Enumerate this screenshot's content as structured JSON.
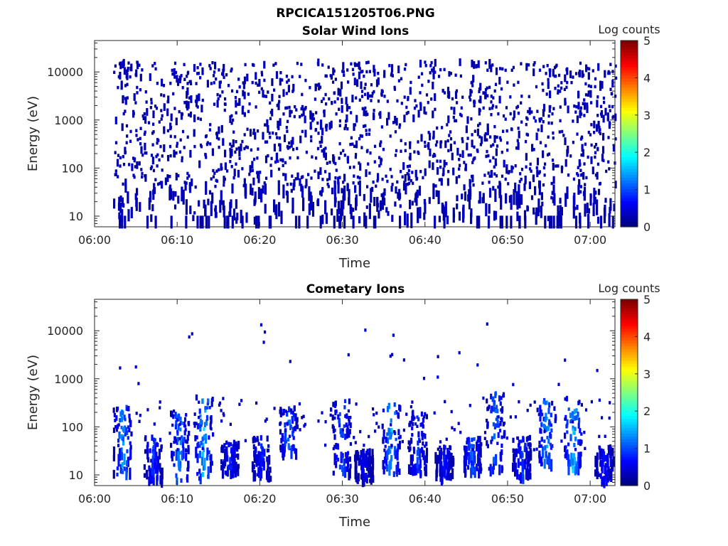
{
  "figure_title": "RPCICA151205T06.PNG",
  "colors": {
    "scatter_palette": "jet",
    "axis": "#262626",
    "background": "#ffffff"
  },
  "chart_data": [
    {
      "type": "heatmap",
      "title": "Solar Wind Ions",
      "xlabel": "Time",
      "ylabel": "Energy (eV)",
      "x_ticks": [
        "06:00",
        "06:10",
        "06:20",
        "06:30",
        "06:40",
        "06:50",
        "07:00"
      ],
      "x_tick_minutes": [
        0,
        10,
        20,
        30,
        40,
        50,
        60
      ],
      "xlim_minutes": [
        0,
        63
      ],
      "y_scale": "log",
      "y_ticks": [
        "10",
        "100",
        "1000",
        "10000"
      ],
      "y_tick_values": [
        10,
        100,
        1000,
        10000
      ],
      "ylim": [
        6,
        45000
      ],
      "colorbar": {
        "label": "Log counts",
        "range": [
          0,
          5
        ],
        "ticks": [
          "0",
          "1",
          "2",
          "3",
          "4",
          "5"
        ]
      },
      "description_pattern": "sparse",
      "clusters": []
    },
    {
      "type": "heatmap",
      "title": "Cometary Ions",
      "xlabel": "Time",
      "ylabel": "Energy (eV)",
      "x_ticks": [
        "06:00",
        "06:10",
        "06:20",
        "06:30",
        "06:40",
        "06:50",
        "07:00"
      ],
      "x_tick_minutes": [
        0,
        10,
        20,
        30,
        40,
        50,
        60
      ],
      "xlim_minutes": [
        0,
        63
      ],
      "y_scale": "log",
      "y_ticks": [
        "10",
        "100",
        "1000",
        "10000"
      ],
      "y_tick_values": [
        10,
        100,
        1000,
        10000
      ],
      "ylim": [
        6,
        45000
      ],
      "colorbar": {
        "label": "Log counts",
        "range": [
          0,
          5
        ],
        "ticks": [
          "0",
          "1",
          "2",
          "3",
          "4",
          "5"
        ]
      },
      "description_pattern": "clustered",
      "clusters": [
        {
          "t": 3.3,
          "emin": 10,
          "emax": 250,
          "peak": 1.6
        },
        {
          "t": 7.0,
          "emin": 7,
          "emax": 60,
          "peak": 1.0
        },
        {
          "t": 10.2,
          "emin": 7,
          "emax": 200,
          "peak": 1.5
        },
        {
          "t": 13.1,
          "emin": 7,
          "emax": 450,
          "peak": 1.8
        },
        {
          "t": 16.3,
          "emin": 10,
          "emax": 50,
          "peak": 0.9
        },
        {
          "t": 20.1,
          "emin": 8,
          "emax": 60,
          "peak": 0.9
        },
        {
          "t": 23.4,
          "emin": 25,
          "emax": 250,
          "peak": 1.4
        },
        {
          "t": 29.8,
          "emin": 10,
          "emax": 350,
          "peak": 1.2
        },
        {
          "t": 32.5,
          "emin": 7,
          "emax": 30,
          "peak": 0.7
        },
        {
          "t": 35.8,
          "emin": 10,
          "emax": 300,
          "peak": 1.7
        },
        {
          "t": 39.0,
          "emin": 10,
          "emax": 200,
          "peak": 1.1
        },
        {
          "t": 42.2,
          "emin": 8,
          "emax": 40,
          "peak": 0.8
        },
        {
          "t": 45.6,
          "emin": 10,
          "emax": 60,
          "peak": 1.2
        },
        {
          "t": 48.4,
          "emin": 12,
          "emax": 500,
          "peak": 1.3
        },
        {
          "t": 51.6,
          "emin": 8,
          "emax": 60,
          "peak": 1.1
        },
        {
          "t": 54.6,
          "emin": 15,
          "emax": 350,
          "peak": 1.6
        },
        {
          "t": 57.8,
          "emin": 12,
          "emax": 400,
          "peak": 1.9
        },
        {
          "t": 61.6,
          "emin": 7,
          "emax": 40,
          "peak": 0.9
        }
      ]
    }
  ]
}
